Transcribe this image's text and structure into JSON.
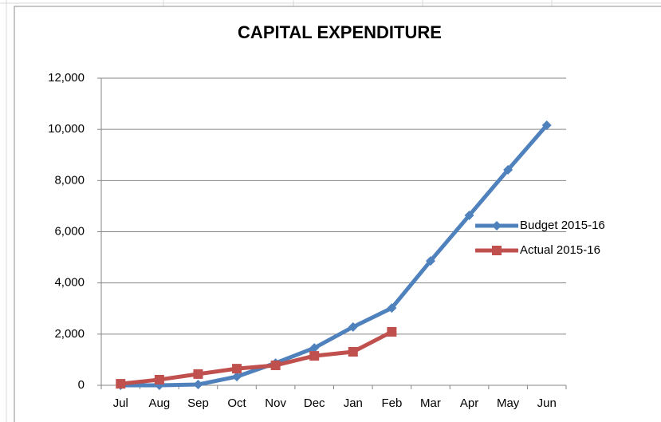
{
  "chart_data": {
    "type": "line",
    "title": "CAPITAL EXPENDITURE",
    "categories": [
      "Jul",
      "Aug",
      "Sep",
      "Oct",
      "Nov",
      "Dec",
      "Jan",
      "Feb",
      "Mar",
      "Apr",
      "May",
      "Jun"
    ],
    "series": [
      {
        "name": "Budget 2015-16",
        "color": "#4f81bd",
        "marker": "diamond",
        "values": [
          0,
          0,
          30,
          340,
          870,
          1460,
          2280,
          3020,
          4860,
          6640,
          8420,
          10160
        ]
      },
      {
        "name": "Actual 2015-16",
        "color": "#c0504d",
        "marker": "square",
        "values": [
          60,
          220,
          440,
          650,
          780,
          1150,
          1310,
          2090,
          null,
          null,
          null,
          null
        ]
      }
    ],
    "ylim": [
      0,
      12000
    ],
    "yticks": [
      0,
      {
        "value": 2000,
        "label": "2,000"
      },
      {
        "value": 4000,
        "label": "4,000"
      },
      {
        "value": 6000,
        "label": "6,000"
      },
      {
        "value": 8000,
        "label": "8,000"
      },
      {
        "value": 10000,
        "label": "10,000"
      },
      {
        "value": 12000,
        "label": "12,000"
      }
    ],
    "grid": true,
    "legend": "right"
  }
}
